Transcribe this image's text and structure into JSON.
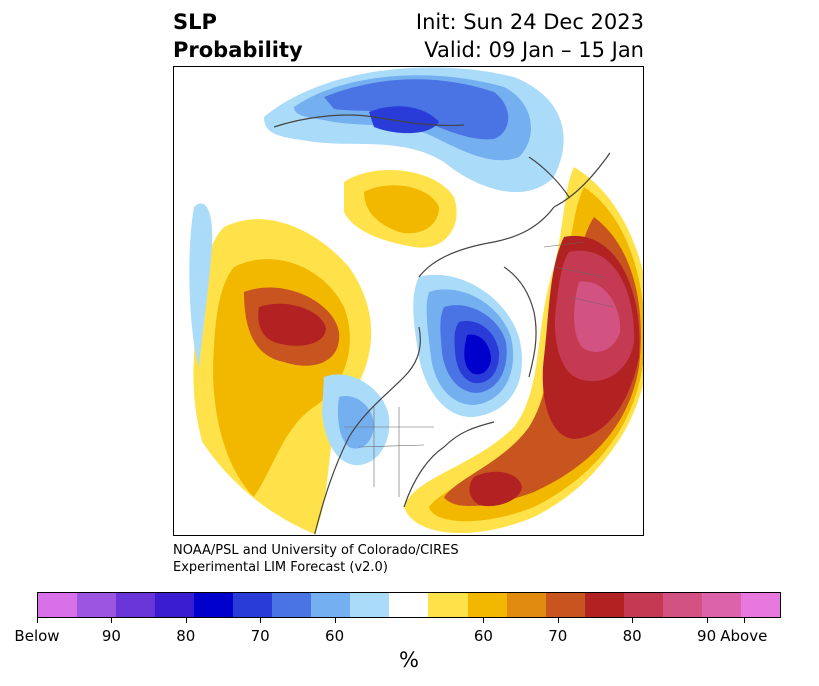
{
  "title": {
    "variable": "SLP",
    "subtitle": "Probability",
    "init": "Init: Sun 24 Dec 2023",
    "valid": "Valid: 09 Jan – 15 Jan"
  },
  "credit": {
    "line1": "NOAA/PSL and University of Colorado/CIRES",
    "line2": "Experimental LIM Forecast (v2.0)"
  },
  "colorbar": {
    "unit": "%",
    "colors": [
      "#d870e8",
      "#9b55e0",
      "#6a35d8",
      "#3a1dd0",
      "#0000cc",
      "#2a3cd8",
      "#4a74e4",
      "#74b0f0",
      "#aadcfa",
      "#ffffff",
      "#ffe24a",
      "#f2b800",
      "#e08a10",
      "#c85520",
      "#b22222",
      "#c43a52",
      "#d25282",
      "#dc62aa",
      "#e678de"
    ],
    "tick_labels": [
      "Below",
      "90",
      "80",
      "70",
      "60",
      "60",
      "70",
      "80",
      "90",
      "Above"
    ]
  },
  "map": {
    "description_icon": "polar-stereographic-map",
    "contours": [
      {
        "category": "above-90",
        "color": "#dc62aa"
      },
      {
        "category": "above-80",
        "color": "#c43a52"
      },
      {
        "category": "above-70",
        "color": "#b22222"
      },
      {
        "category": "above-60",
        "color": "#c85520"
      },
      {
        "category": "below-60",
        "color": "#4a74e4"
      },
      {
        "category": "below-80",
        "color": "#0000cc"
      }
    ]
  }
}
